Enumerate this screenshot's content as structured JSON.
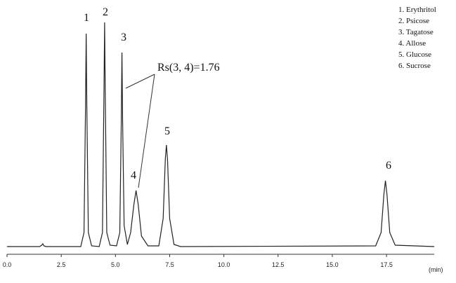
{
  "chart_data": {
    "type": "line",
    "x": [
      0,
      1.5,
      1.6,
      1.65,
      1.7,
      1.8,
      3.4,
      3.55,
      3.62,
      3.65,
      3.68,
      3.75,
      3.9,
      4.25,
      4.4,
      4.47,
      4.5,
      4.53,
      4.6,
      4.75,
      5.05,
      5.2,
      5.27,
      5.3,
      5.33,
      5.4,
      5.55,
      5.7,
      5.85,
      5.95,
      6.05,
      6.2,
      6.5,
      7.0,
      7.2,
      7.3,
      7.35,
      7.4,
      7.5,
      7.7,
      8.0,
      17.0,
      17.25,
      17.38,
      17.45,
      17.52,
      17.65,
      17.9,
      19.7
    ],
    "series": [
      {
        "color": "#222222",
        "values": [
          0,
          0,
          2,
          4,
          1,
          0,
          0,
          20,
          200,
          304,
          200,
          20,
          1,
          0,
          20,
          220,
          320,
          220,
          20,
          2,
          1,
          20,
          180,
          277,
          180,
          30,
          3,
          20,
          60,
          80,
          60,
          15,
          1,
          1,
          40,
          125,
          145,
          125,
          40,
          3,
          0,
          1,
          20,
          75,
          94,
          75,
          20,
          2,
          0
        ]
      }
    ],
    "xlim": [
      0,
      19.7
    ],
    "ylim": [
      -10,
      340
    ],
    "xticks": [
      {
        "value": 0,
        "label": "0.0"
      },
      2.5,
      {
        "value": 5,
        "label": "5.0"
      },
      7.5,
      {
        "value": 10,
        "label": "10.0"
      },
      12.5,
      {
        "value": 15,
        "label": "15.0"
      },
      17.5
    ],
    "xlabel": "(min)",
    "peak_labels": [
      "1",
      "2",
      "3",
      "4",
      "5",
      "6"
    ],
    "annotation": "Rs(3, 4)=1.76",
    "legend_labels": [
      "1. Erythritol",
      "2. Psicose",
      "3. Tagatose",
      "4. Allose",
      "5. Glucose",
      "6. Sucrose"
    ]
  }
}
